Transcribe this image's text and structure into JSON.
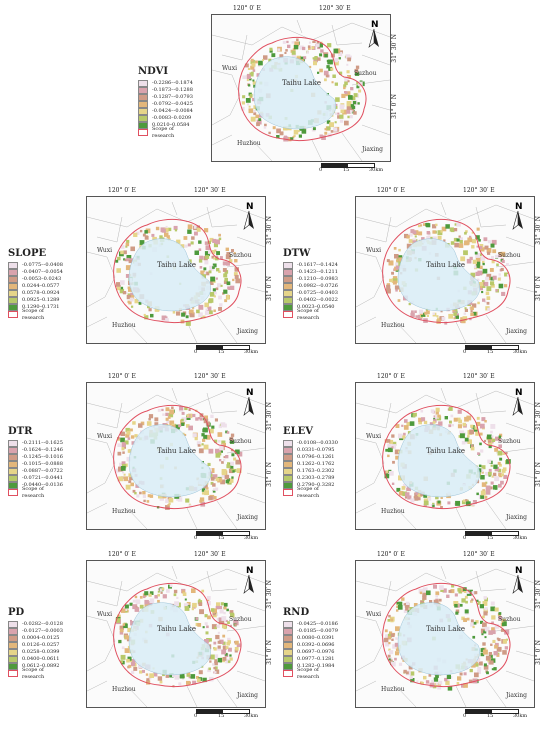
{
  "coords": {
    "lon1": "120° 0′ E",
    "lon2": "120° 30′ E",
    "lat1": "31° 30′ N",
    "lat2": "31° 0′ N"
  },
  "places": {
    "lake": "Taihu Lake",
    "wuxi": "Wuxi",
    "suzhou": "Suzhou",
    "huzhou": "Huzhou",
    "jiaxing": "Jiaxing"
  },
  "scale": {
    "n0": "0",
    "n1": "15",
    "n2": "30km"
  },
  "north": "N",
  "scope_label": "Scope of research",
  "colors": {
    "c1": "#eee0ea",
    "c2": "#d9a3ad",
    "c3": "#cf9b86",
    "c4": "#e3b77b",
    "c5": "#e6d58a",
    "c6": "#b8c96a",
    "c7": "#4e9a3c",
    "lake": "#d8ecf6",
    "scope": "#e05060"
  },
  "panels": [
    {
      "id": "ndvi",
      "title": "NDVI",
      "ranges": [
        "-0.2286–-0.1874",
        "-0.1873–-0.1288",
        "-0.1287–-0.0793",
        "-0.0792–-0.0425",
        "-0.0424–-0.0084",
        "-0.0083–0.0209",
        "0.0210–0.0584"
      ]
    },
    {
      "id": "slope",
      "title": "SLOPE",
      "ranges": [
        "-0.0775–-0.0408",
        "-0.0407–-0.0054",
        "-0.0053–0.0243",
        "0.0244–0.0577",
        "0.0578–0.0924",
        "0.0925–0.1289",
        "0.1290–0.1731"
      ]
    },
    {
      "id": "dtw",
      "title": "DTW",
      "ranges": [
        "-0.1617–-0.1424",
        "-0.1423–-0.1211",
        "-0.1210–-0.0983",
        "-0.0982–-0.0726",
        "-0.0725–-0.0403",
        "-0.0402–-0.0022",
        "0.0023–0.0540"
      ]
    },
    {
      "id": "dtr",
      "title": "DTR",
      "ranges": [
        "-0.2111–-0.1625",
        "-0.1624–-0.1246",
        "-0.1245–-0.1016",
        "-0.1015–-0.0888",
        "-0.0887–-0.0722",
        "-0.0721–-0.0441",
        "-0.0440–-0.0136"
      ]
    },
    {
      "id": "elev",
      "title": "ELEV",
      "ranges": [
        "-0.0108–-0.0330",
        "0.0331–0.0795",
        "0.0796–0.1261",
        "0.1262–0.1762",
        "0.1763–0.2302",
        "0.2303–0.2789",
        "0.2790–0.3282"
      ]
    },
    {
      "id": "pd",
      "title": "PD",
      "ranges": [
        "-0.0282–-0.0128",
        "-0.0127–-0.0003",
        "0.0004–0.0125",
        "0.0126–0.0257",
        "0.0258–0.0399",
        "0.0400–0.0611",
        "0.0612–0.0892"
      ]
    },
    {
      "id": "rnd",
      "title": "RND",
      "ranges": [
        "-0.0425–-0.0186",
        "-0.0185–-0.0079",
        "0.0080–0.0391",
        "0.0392–0.0696",
        "0.0697–0.0976",
        "0.0977–0.1281",
        "0.1282–0.1984"
      ]
    }
  ]
}
